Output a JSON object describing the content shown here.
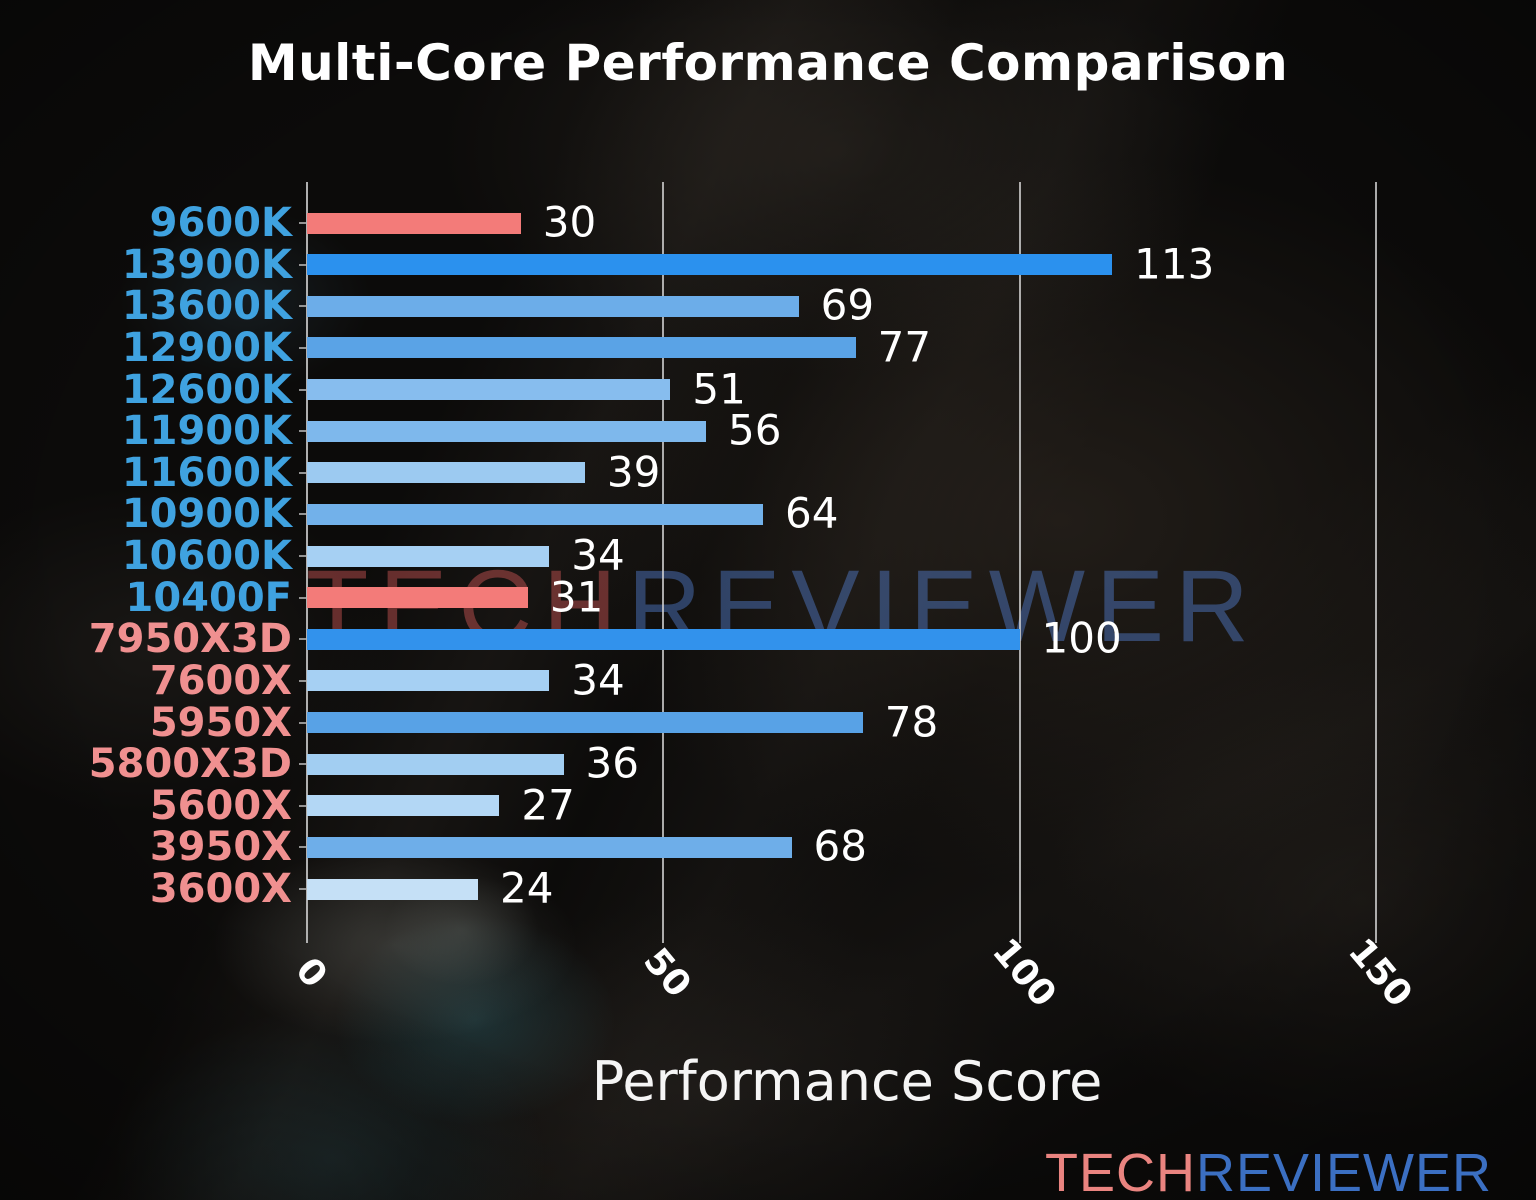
{
  "title": "Multi-Core Performance Comparison",
  "xlabel": "Performance Score",
  "watermark": {
    "tech": "TECH",
    "reviewer": "REVIEWER"
  },
  "logo": {
    "tech": "TECH",
    "reviewer": "REVIEWER"
  },
  "colors": {
    "intel_label": "#3FA2E0",
    "amd_label": "#F09090",
    "highlight_bar": "#F37B79",
    "value_label": "#FFFFFF",
    "grid": "#D7D7D7",
    "logo_tech": "#EA8480",
    "logo_reviewer": "#3B6FC2"
  },
  "chart_data": {
    "type": "bar",
    "orientation": "horizontal",
    "title": "Multi-Core Performance Comparison",
    "xlabel": "Performance Score",
    "ylabel": "",
    "xlim": [
      0,
      166
    ],
    "xticks": [
      0,
      50,
      100,
      150
    ],
    "xtick_labels": [
      "0",
      "50",
      "100",
      "150"
    ],
    "grid": "vertical-gridlines-behind-bars",
    "legend": "none",
    "categories": [
      "9600K",
      "13900K",
      "13600K",
      "12900K",
      "12600K",
      "11900K",
      "11600K",
      "10900K",
      "10600K",
      "10400F",
      "7950X3D",
      "7600X",
      "5950X",
      "5800X3D",
      "5600X",
      "3950X",
      "3600X"
    ],
    "values": [
      30,
      113,
      69,
      77,
      51,
      56,
      39,
      64,
      34,
      31,
      100,
      34,
      78,
      36,
      27,
      68,
      24
    ],
    "bar_colors": [
      "#F37B79",
      "#2B91EE",
      "#6CADE9",
      "#5AA3E6",
      "#87BDEE",
      "#7EB8EC",
      "#9CCAF1",
      "#72B1EA",
      "#A6D0F3",
      "#F37B79",
      "#3292EC",
      "#A6D0F3",
      "#58A2E6",
      "#A2CEF2",
      "#B3D7F5",
      "#6EAEE9",
      "#C5E0F6"
    ],
    "label_colors": [
      "#3FA2E0",
      "#3FA2E0",
      "#3FA2E0",
      "#3FA2E0",
      "#3FA2E0",
      "#3FA2E0",
      "#3FA2E0",
      "#3FA2E0",
      "#3FA2E0",
      "#3FA2E0",
      "#F09090",
      "#F09090",
      "#F09090",
      "#F09090",
      "#F09090",
      "#F09090",
      "#F09090"
    ],
    "vendors": [
      "intel",
      "intel",
      "intel",
      "intel",
      "intel",
      "intel",
      "intel",
      "intel",
      "intel",
      "intel",
      "amd",
      "amd",
      "amd",
      "amd",
      "amd",
      "amd",
      "amd"
    ]
  }
}
